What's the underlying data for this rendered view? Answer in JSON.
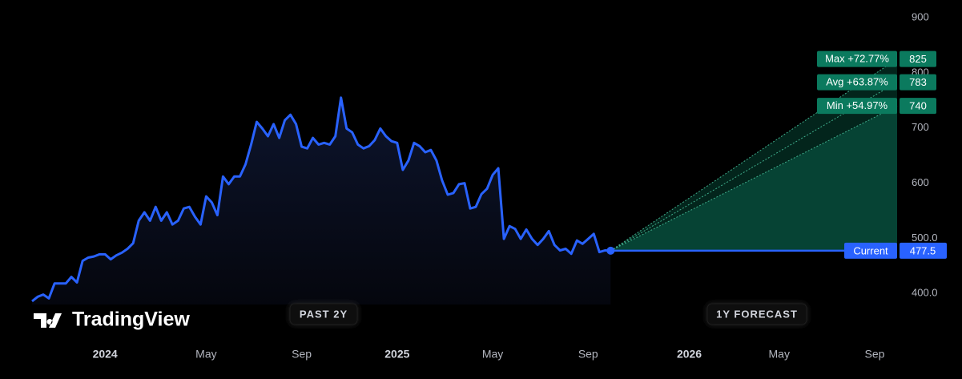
{
  "chart_data": {
    "type": "line",
    "watermark": "TradingView",
    "periods": [
      "PAST 2Y",
      "1Y FORECAST"
    ],
    "color": "#2962ff",
    "categories": [
      null,
      null,
      null,
      null,
      null,
      null,
      null,
      null,
      null,
      null,
      null,
      null,
      null,
      "2024",
      null,
      null,
      null,
      null,
      null,
      null,
      null,
      null,
      null,
      null,
      null,
      null,
      null,
      null,
      null,
      null,
      null,
      "May",
      null,
      null,
      null,
      null,
      null,
      null,
      null,
      null,
      null,
      null,
      null,
      null,
      null,
      null,
      null,
      null,
      "Sep",
      null,
      null,
      null,
      null,
      null,
      null,
      null,
      null,
      null,
      null,
      null,
      null,
      null,
      null,
      null,
      null,
      "2025",
      null,
      null,
      null,
      null,
      null,
      null,
      null,
      null,
      null,
      null,
      null,
      null,
      null,
      null,
      null,
      null,
      "May",
      null,
      null,
      null,
      null,
      null,
      null,
      null,
      null,
      null,
      null,
      null,
      null,
      null,
      null,
      null,
      null,
      "Sep",
      null,
      null,
      null,
      null,
      null,
      null,
      null,
      null,
      null,
      null,
      null,
      null,
      null,
      null,
      null,
      null,
      null,
      "2026",
      null,
      null,
      null,
      null,
      null,
      null,
      null,
      null,
      null,
      null,
      null,
      null,
      null,
      null,
      null,
      "May",
      null,
      null,
      null,
      null,
      null,
      null,
      null,
      null,
      null,
      null,
      null,
      null,
      null,
      null,
      null,
      null,
      "Sep",
      null,
      null,
      null,
      null
    ],
    "values": [
      386,
      394,
      398,
      391,
      418,
      418,
      418,
      430,
      420,
      459,
      465,
      467,
      471,
      471,
      462,
      469,
      474,
      481,
      491,
      532,
      547,
      532,
      557,
      532,
      547,
      525,
      532,
      554,
      557,
      539,
      525,
      576,
      565,
      542,
      612,
      598,
      612,
      612,
      634,
      670,
      711,
      699,
      685,
      707,
      682,
      714,
      724,
      707,
      666,
      663,
      682,
      670,
      673,
      670,
      685,
      755,
      699,
      692,
      670,
      663,
      667,
      678,
      699,
      685,
      676,
      673,
      624,
      641,
      673,
      667,
      656,
      660,
      641,
      605,
      579,
      582,
      598,
      600,
      554,
      557,
      580,
      590,
      615,
      627,
      499,
      522,
      517,
      499,
      516,
      499,
      488,
      499,
      513,
      488,
      478,
      481,
      472,
      496,
      490,
      499,
      508,
      475,
      478,
      477.5,
      null,
      null,
      null,
      null,
      null,
      null,
      null,
      null,
      null,
      null,
      null,
      null,
      null,
      null,
      null,
      null,
      null,
      null,
      null,
      null,
      null,
      null,
      null,
      null,
      null,
      null,
      null,
      null,
      null,
      null,
      null,
      null,
      null,
      null,
      null,
      null,
      null,
      null,
      null,
      null,
      null,
      null,
      null,
      null,
      null,
      null,
      null,
      null,
      null,
      null,
      null
    ],
    "current": {
      "name": "Current",
      "value": 477.5,
      "color": "#2962ff"
    },
    "forecast": [
      {
        "name": "Max",
        "label": "+72.77%",
        "value": 825
      },
      {
        "name": "Avg",
        "label": "+63.87%",
        "value": 783
      },
      {
        "name": "Min",
        "label": "+54.97%",
        "value": 740
      }
    ],
    "forecast_color": "#0b7a5e",
    "ylim": [
      380,
      932
    ],
    "yticks": [
      {
        "value": 400,
        "label": "400.0"
      },
      {
        "value": 500,
        "label": "500.0"
      },
      600,
      700,
      800,
      900
    ],
    "grid": false
  }
}
